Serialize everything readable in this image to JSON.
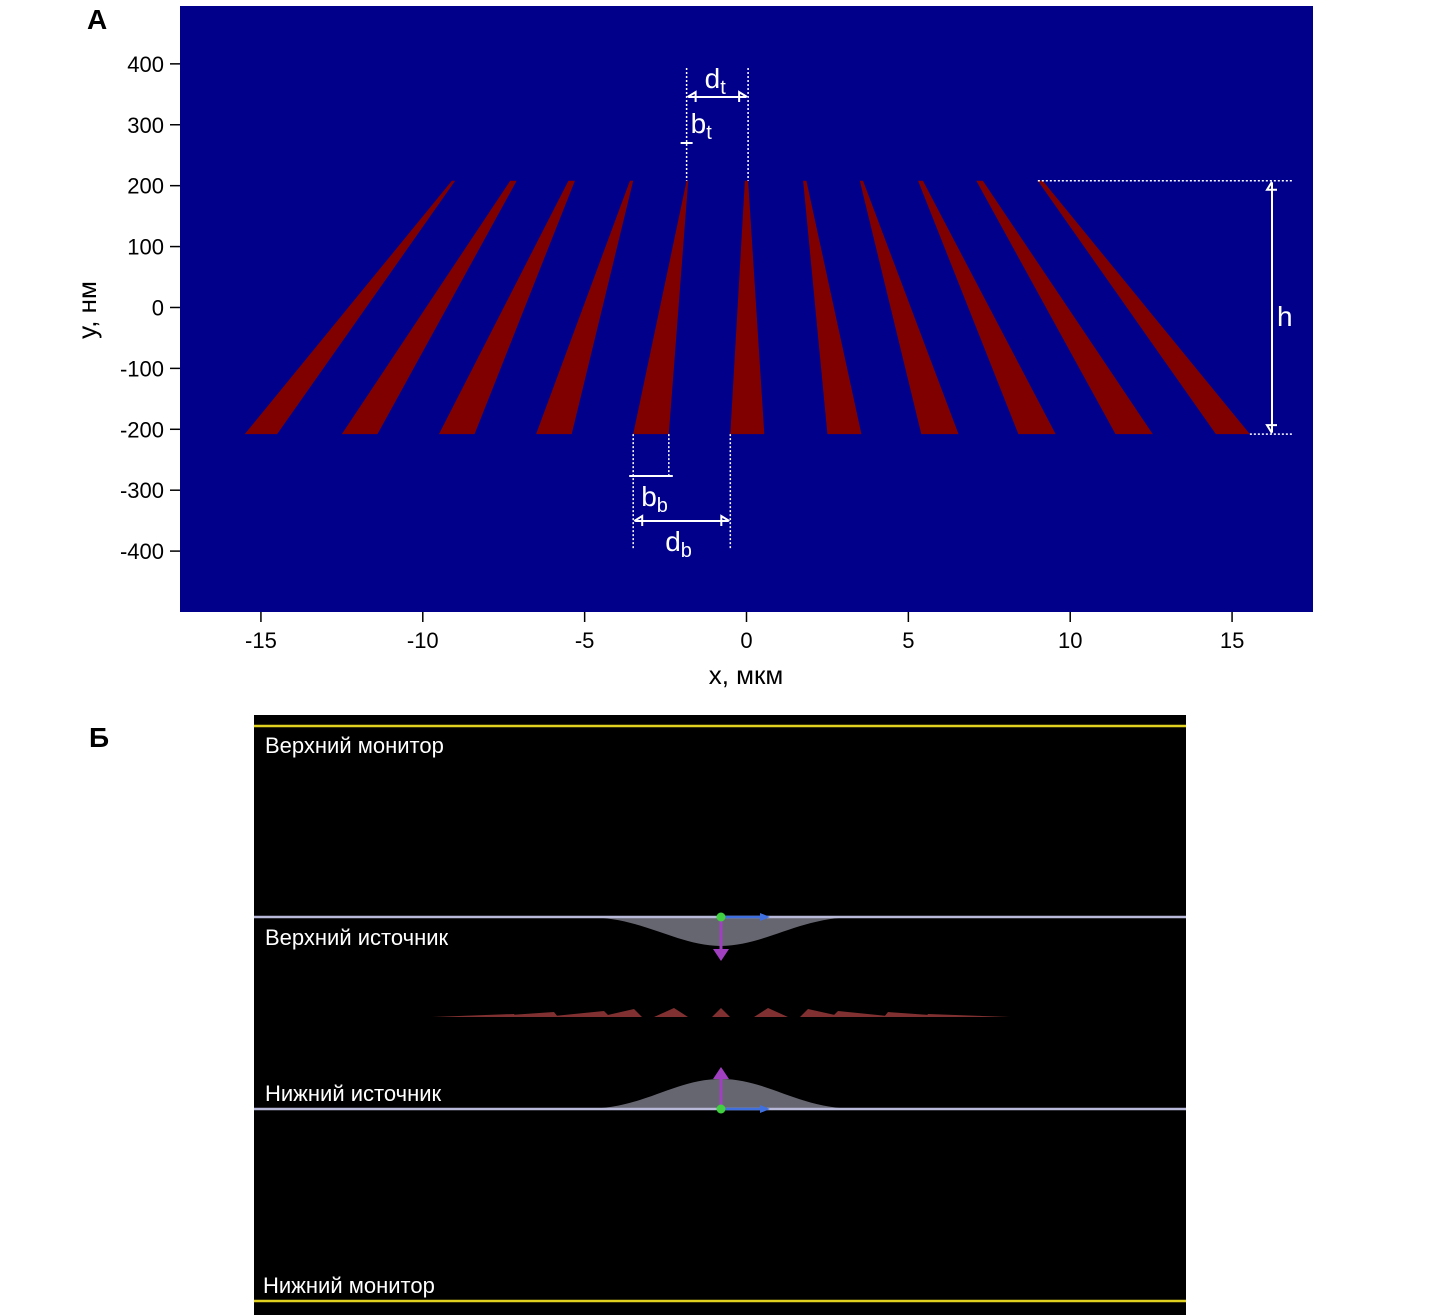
{
  "panel_a": {
    "label": "А",
    "chart_data": {
      "type": "heatmap",
      "title": "",
      "xlabel": "x, мкм",
      "ylabel": "y, нм",
      "xlim": [
        -17.5,
        17.5
      ],
      "ylim": [
        -500,
        495
      ],
      "x_ticks": [
        -15,
        -10,
        -5,
        0,
        5,
        10,
        15
      ],
      "x_tick_labels": [
        "-15",
        "-10",
        "-5",
        "0",
        "5",
        "10",
        "15"
      ],
      "y_ticks": [
        400,
        300,
        200,
        100,
        0,
        -100,
        -200,
        -300,
        -400
      ],
      "y_tick_labels": [
        "400",
        "300",
        "200",
        "100",
        "0",
        "-100",
        "-200",
        "-300",
        "-400"
      ],
      "background_color": "#00008b",
      "ridge_color": "#800000",
      "ridge_height_range": [
        -208,
        208
      ],
      "ridges": [
        {
          "bottom_x": [
            -15.5,
            -14.5
          ],
          "top_x": [
            -9.1,
            -9.0
          ]
        },
        {
          "bottom_x": [
            -12.5,
            -11.4
          ],
          "top_x": [
            -7.3,
            -7.1
          ]
        },
        {
          "bottom_x": [
            -9.5,
            -8.4
          ],
          "top_x": [
            -5.5,
            -5.3
          ]
        },
        {
          "bottom_x": [
            -6.5,
            -5.4
          ],
          "top_x": [
            -3.6,
            -3.5
          ]
        },
        {
          "bottom_x": [
            -3.5,
            -2.4
          ],
          "top_x": [
            -1.85,
            -1.8
          ]
        },
        {
          "bottom_x": [
            -0.5,
            0.55
          ],
          "top_x": [
            -0.05,
            0.05
          ]
        },
        {
          "bottom_x": [
            2.5,
            3.55
          ],
          "top_x": [
            1.75,
            1.85
          ]
        },
        {
          "bottom_x": [
            5.4,
            6.55
          ],
          "top_x": [
            3.5,
            3.6
          ]
        },
        {
          "bottom_x": [
            8.4,
            9.55
          ],
          "top_x": [
            5.3,
            5.45
          ]
        },
        {
          "bottom_x": [
            11.4,
            12.55
          ],
          "top_x": [
            7.1,
            7.3
          ]
        },
        {
          "bottom_x": [
            14.5,
            15.55
          ],
          "top_x": [
            9.0,
            9.15
          ]
        }
      ],
      "annotations": [
        {
          "main": "d",
          "sub": "t"
        },
        {
          "main": "b",
          "sub": "t"
        },
        {
          "main": "b",
          "sub": "b"
        },
        {
          "main": "d",
          "sub": "b"
        },
        {
          "main": "h",
          "sub": ""
        }
      ]
    }
  },
  "panel_b": {
    "label": "Б",
    "top_monitor": "Верхний монитор",
    "top_source": "Верхний источник",
    "bottom_source": "Нижний источник",
    "bottom_monitor": "Нижний монитор",
    "colors": {
      "background": "#000000",
      "monitor_line": "#e0d020",
      "source_line": "#b8b8d8",
      "gaussian_fill": "#666670",
      "arrow_purple": "#a040c0",
      "arrow_blue": "#4070e0",
      "dot_green": "#40d040",
      "ridge_red": "#803030"
    }
  }
}
